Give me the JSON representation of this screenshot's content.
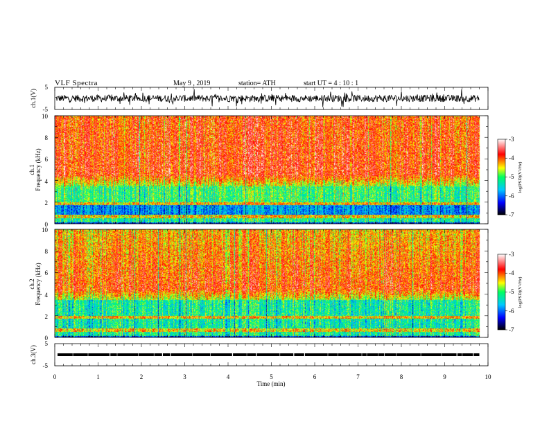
{
  "header": {
    "title": "VLF  Spectra",
    "date": "May 9  , 2019",
    "station": "station= ATH",
    "start": "start  UT  =   4  : 10 : 1"
  },
  "chart_data": [
    {
      "type": "line",
      "panel": "ch1-waveform",
      "ylabel": "ch.1(V)",
      "ylim": [
        -5,
        5
      ],
      "yticks": [
        "5",
        "-5"
      ],
      "xlim": [
        0,
        10
      ],
      "color": "#000000"
    },
    {
      "type": "heatmap",
      "panel": "ch1-spectrogram",
      "ylabel_channel": "ch.1",
      "ylabel": "Frequency (kHz)",
      "ylim": [
        0,
        10
      ],
      "yticks": [
        "0",
        "2",
        "4",
        "6",
        "8",
        "10"
      ],
      "xlim": [
        0,
        10
      ],
      "data_end_min": 9.8,
      "colorbar": {
        "label": "log(PSD)(V²/Hz)",
        "range": [
          -7,
          -3
        ],
        "ticks": [
          "-3",
          "-4",
          "-5",
          "-6",
          "-7"
        ],
        "colors": [
          "#000000",
          "#0000ff",
          "#00c8ff",
          "#00ff60",
          "#ffff00",
          "#ff0000",
          "#ffffff"
        ]
      }
    },
    {
      "type": "heatmap",
      "panel": "ch2-spectrogram",
      "ylabel_channel": "ch.2",
      "ylabel": "Frequency (kHz)",
      "ylim": [
        0,
        10
      ],
      "yticks": [
        "0",
        "2",
        "4",
        "6",
        "8",
        "10"
      ],
      "xlim": [
        0,
        10
      ],
      "data_end_min": 9.8,
      "colorbar": {
        "label": "log(PSD)(V²/Hz)",
        "range": [
          -7,
          -3
        ],
        "ticks": [
          "-3",
          "-4",
          "-5",
          "-6",
          "-7"
        ],
        "colors": [
          "#000000",
          "#0000ff",
          "#00c8ff",
          "#00ff60",
          "#ffff00",
          "#ff0000",
          "#ffffff"
        ]
      }
    },
    {
      "type": "line",
      "panel": "ch3-waveform",
      "ylabel": "ch.3(V)",
      "ylim": [
        -5,
        5
      ],
      "yticks": [
        "5",
        "-5"
      ],
      "xlim": [
        0,
        10
      ],
      "xlabel": "Time  (min)",
      "xticks": [
        "0",
        "1",
        "2",
        "3",
        "4",
        "5",
        "6",
        "7",
        "8",
        "9",
        "10"
      ],
      "color": "#000000"
    }
  ]
}
